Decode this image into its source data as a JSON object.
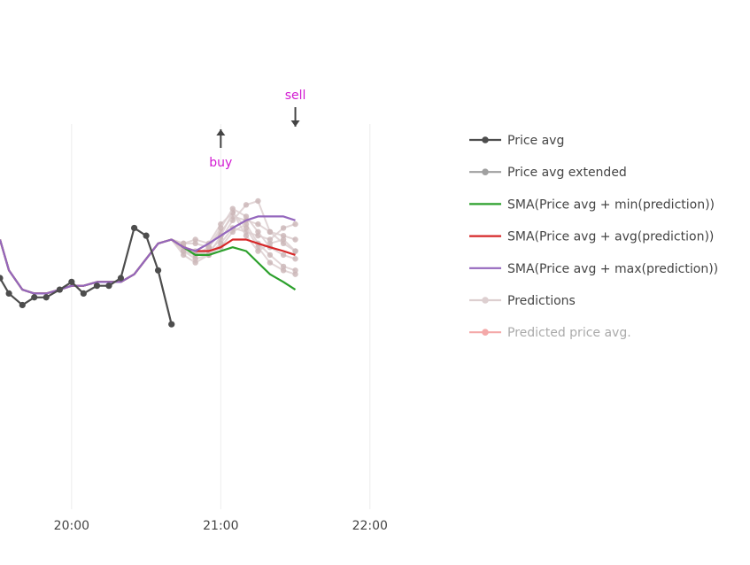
{
  "chart_data": {
    "type": "line",
    "title": "",
    "xlabel": "",
    "ylabel": "",
    "x_ticks": [
      "20:00",
      "21:00",
      "22:00"
    ],
    "x_range_hours": [
      19.52,
      22.5
    ],
    "y_range": [
      0,
      100
    ],
    "grid": {
      "x": true,
      "y": false
    },
    "legend_position": "right",
    "series": [
      {
        "name": "Price avg",
        "color": "#4d4d4d",
        "markers": true,
        "x": [
          19.52,
          19.58,
          19.67,
          19.75,
          19.83,
          19.92,
          20.0,
          20.08,
          20.17,
          20.25,
          20.33,
          20.42,
          20.5,
          20.58,
          20.67
        ],
        "y": [
          60,
          56,
          53,
          55,
          55,
          57,
          59,
          56,
          58,
          58,
          60,
          73,
          71,
          62,
          48
        ]
      },
      {
        "name": "Price avg extended",
        "color": "#a0a0a0",
        "markers": true,
        "x": [],
        "y": []
      },
      {
        "name": "SMA(Price avg + min(prediction))",
        "color": "#2ca02c",
        "markers": false,
        "x": [
          19.52,
          19.58,
          19.67,
          19.75,
          19.83,
          19.92,
          20.0,
          20.08,
          20.17,
          20.25,
          20.33,
          20.42,
          20.5,
          20.58,
          20.67,
          20.75,
          20.83,
          20.92,
          21.0,
          21.08,
          21.17,
          21.25,
          21.33,
          21.42,
          21.5
        ],
        "y": [
          70,
          62,
          57,
          56,
          56,
          57,
          58,
          58,
          59,
          59,
          59,
          61,
          65,
          69,
          70,
          68,
          66,
          66,
          67,
          68,
          67,
          64,
          61,
          59,
          57
        ]
      },
      {
        "name": "SMA(Price avg + avg(prediction))",
        "color": "#d62728",
        "markers": false,
        "x": [
          19.52,
          19.58,
          19.67,
          19.75,
          19.83,
          19.92,
          20.0,
          20.08,
          20.17,
          20.25,
          20.33,
          20.42,
          20.5,
          20.58,
          20.67,
          20.75,
          20.83,
          20.92,
          21.0,
          21.08,
          21.17,
          21.25,
          21.33,
          21.42,
          21.5
        ],
        "y": [
          70,
          62,
          57,
          56,
          56,
          57,
          58,
          58,
          59,
          59,
          59,
          61,
          65,
          69,
          70,
          68,
          67,
          67,
          68,
          70,
          70,
          69,
          68,
          67,
          66
        ]
      },
      {
        "name": "SMA(Price avg + max(prediction))",
        "color": "#9467bd",
        "markers": false,
        "x": [
          19.52,
          19.58,
          19.67,
          19.75,
          19.83,
          19.92,
          20.0,
          20.08,
          20.17,
          20.25,
          20.33,
          20.42,
          20.5,
          20.58,
          20.67,
          20.75,
          20.83,
          20.92,
          21.0,
          21.08,
          21.17,
          21.25,
          21.33,
          21.42,
          21.5
        ],
        "y": [
          70,
          62,
          57,
          56,
          56,
          57,
          58,
          58,
          59,
          59,
          59,
          61,
          65,
          69,
          70,
          68,
          67,
          69,
          71,
          73,
          75,
          76,
          76,
          76,
          75
        ]
      },
      {
        "name": "Predictions",
        "color": "#ddcfd0",
        "markers": true,
        "x": [],
        "y": []
      },
      {
        "name": "Predicted price avg.",
        "color": "#f4a9a9",
        "markers": true,
        "x": [],
        "y": []
      }
    ],
    "predictions": [
      {
        "x": [
          20.67,
          20.75,
          20.83,
          20.92,
          21.0,
          21.08,
          21.17,
          21.25,
          21.33,
          21.42,
          21.5
        ],
        "y": [
          70,
          68,
          66,
          67,
          70,
          75,
          79,
          80,
          72,
          69,
          67
        ]
      },
      {
        "x": [
          20.67,
          20.75,
          20.83,
          20.92,
          21.0,
          21.08,
          21.17,
          21.25,
          21.33,
          21.42,
          21.5
        ],
        "y": [
          70,
          69,
          69,
          68,
          72,
          76,
          75,
          74,
          72,
          71,
          70
        ]
      },
      {
        "x": [
          20.67,
          20.75,
          20.83,
          20.92,
          21.0,
          21.08,
          21.17,
          21.25,
          21.33,
          21.42,
          21.5
        ],
        "y": [
          70,
          67,
          65,
          66,
          68,
          72,
          74,
          69,
          66,
          63,
          62
        ]
      },
      {
        "x": [
          20.67,
          20.75,
          20.83,
          20.92,
          21.0,
          21.08,
          21.17,
          21.25,
          21.33,
          21.42,
          21.5
        ],
        "y": [
          70,
          68,
          67,
          66,
          69,
          73,
          72,
          71,
          70,
          73,
          74
        ]
      },
      {
        "x": [
          20.67,
          20.75,
          20.83,
          20.92,
          21.0,
          21.08,
          21.17,
          21.25,
          21.33,
          21.42,
          21.5
        ],
        "y": [
          70,
          66,
          64,
          66,
          71,
          77,
          73,
          68,
          64,
          62,
          61
        ]
      },
      {
        "x": [
          20.67,
          20.75,
          20.83,
          20.92,
          21.0,
          21.08,
          21.17,
          21.25,
          21.33,
          21.42,
          21.5
        ],
        "y": [
          70,
          69,
          70,
          69,
          74,
          77,
          71,
          67,
          69,
          70,
          67
        ]
      },
      {
        "x": [
          20.67,
          20.75,
          20.83,
          20.92,
          21.0,
          21.08,
          21.17,
          21.25,
          21.33,
          21.42,
          21.5
        ],
        "y": [
          70,
          67,
          66,
          68,
          73,
          78,
          76,
          72,
          68,
          66,
          65
        ]
      }
    ],
    "annotations": [
      {
        "text": "buy",
        "x": 21.0,
        "arrow": "up",
        "color": "#d21ad2"
      },
      {
        "text": "sell",
        "x": 21.5,
        "arrow": "down",
        "color": "#d21ad2"
      }
    ]
  }
}
